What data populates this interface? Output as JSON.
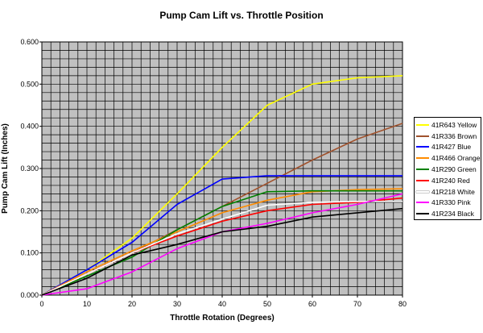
{
  "chart_data": {
    "type": "line",
    "title": "Pump Cam Lift vs. Throttle Position",
    "xlabel": "Throttle Rotation (Degrees)",
    "ylabel": "Pump Cam Lift (Inches)",
    "xlim": [
      0,
      80
    ],
    "ylim": [
      0,
      0.6
    ],
    "x_ticks": [
      "0",
      "10",
      "20",
      "30",
      "40",
      "50",
      "60",
      "70",
      "80"
    ],
    "y_ticks": [
      "0.000",
      "0.100",
      "0.200",
      "0.300",
      "0.400",
      "0.500",
      "0.600"
    ],
    "grid": true,
    "plot_background": "#c0c0c0",
    "legend_position": "right",
    "series": [
      {
        "name": "41R643 Yellow",
        "color": "#ffff00",
        "points": [
          [
            0,
            0
          ],
          [
            10,
            0.06
          ],
          [
            20,
            0.135
          ],
          [
            30,
            0.24
          ],
          [
            40,
            0.35
          ],
          [
            50,
            0.45
          ],
          [
            60,
            0.5
          ],
          [
            70,
            0.515
          ],
          [
            80,
            0.52
          ]
        ]
      },
      {
        "name": "41R336 Brown",
        "color": "#a0522d",
        "points": [
          [
            0,
            0
          ],
          [
            10,
            0.05
          ],
          [
            20,
            0.1
          ],
          [
            30,
            0.155
          ],
          [
            40,
            0.21
          ],
          [
            50,
            0.265
          ],
          [
            60,
            0.32
          ],
          [
            70,
            0.37
          ],
          [
            80,
            0.407
          ]
        ]
      },
      {
        "name": "41R427 Blue",
        "color": "#0000ff",
        "points": [
          [
            0,
            0
          ],
          [
            10,
            0.06
          ],
          [
            20,
            0.125
          ],
          [
            30,
            0.215
          ],
          [
            40,
            0.275
          ],
          [
            50,
            0.283
          ],
          [
            60,
            0.283
          ],
          [
            70,
            0.283
          ],
          [
            80,
            0.283
          ]
        ]
      },
      {
        "name": "41R466 Orange",
        "color": "#ff8c00",
        "points": [
          [
            0,
            0
          ],
          [
            10,
            0.055
          ],
          [
            20,
            0.105
          ],
          [
            30,
            0.15
          ],
          [
            40,
            0.195
          ],
          [
            50,
            0.225
          ],
          [
            60,
            0.245
          ],
          [
            70,
            0.25
          ],
          [
            80,
            0.252
          ]
        ]
      },
      {
        "name": "41R290 Green",
        "color": "#008000",
        "points": [
          [
            0,
            0
          ],
          [
            10,
            0.045
          ],
          [
            20,
            0.09
          ],
          [
            30,
            0.155
          ],
          [
            40,
            0.21
          ],
          [
            50,
            0.245
          ],
          [
            60,
            0.247
          ],
          [
            70,
            0.247
          ],
          [
            80,
            0.247
          ]
        ]
      },
      {
        "name": "41R240 Red",
        "color": "#ff0000",
        "points": [
          [
            0,
            0
          ],
          [
            10,
            0.05
          ],
          [
            20,
            0.1
          ],
          [
            30,
            0.14
          ],
          [
            40,
            0.175
          ],
          [
            50,
            0.2
          ],
          [
            60,
            0.215
          ],
          [
            70,
            0.22
          ],
          [
            80,
            0.23
          ]
        ]
      },
      {
        "name": "41R218 White",
        "color": "#ffffff",
        "points": [
          [
            0,
            0
          ],
          [
            10,
            0.05
          ],
          [
            20,
            0.1
          ],
          [
            30,
            0.145
          ],
          [
            40,
            0.18
          ],
          [
            50,
            0.213
          ],
          [
            60,
            0.22
          ],
          [
            70,
            0.222
          ],
          [
            80,
            0.222
          ]
        ]
      },
      {
        "name": "41R330 Pink",
        "color": "#ff00ff",
        "points": [
          [
            0,
            0
          ],
          [
            10,
            0.015
          ],
          [
            20,
            0.055
          ],
          [
            30,
            0.11
          ],
          [
            40,
            0.15
          ],
          [
            50,
            0.17
          ],
          [
            60,
            0.195
          ],
          [
            70,
            0.215
          ],
          [
            80,
            0.24
          ]
        ]
      },
      {
        "name": "41R234 Black",
        "color": "#000000",
        "points": [
          [
            0,
            0
          ],
          [
            10,
            0.04
          ],
          [
            20,
            0.095
          ],
          [
            30,
            0.12
          ],
          [
            40,
            0.15
          ],
          [
            50,
            0.163
          ],
          [
            60,
            0.185
          ],
          [
            70,
            0.195
          ],
          [
            80,
            0.205
          ]
        ]
      }
    ]
  }
}
